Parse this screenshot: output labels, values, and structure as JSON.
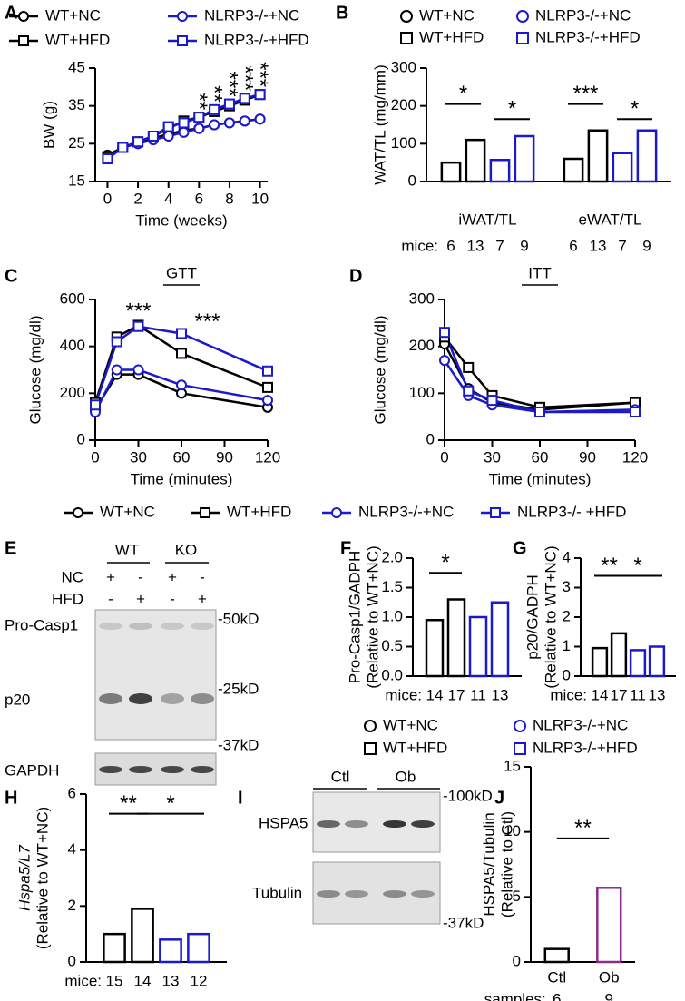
{
  "chart_data": [
    {
      "type": "line",
      "panel": "A",
      "ylabel": "BW (g)",
      "xlabel": "Time (weeks)",
      "x": [
        0,
        1,
        2,
        3,
        4,
        5,
        6,
        7,
        8,
        9,
        10
      ],
      "xlim": [
        -0.8,
        10.5
      ],
      "xticks": [
        0,
        2,
        4,
        6,
        8,
        10
      ],
      "ylim": [
        15,
        45
      ],
      "yticks": [
        15,
        25,
        35,
        45
      ],
      "legend": "top",
      "series": [
        {
          "name": "WT+NC",
          "color": "#000000",
          "marker": "circle",
          "values": [
            22,
            24,
            25.5,
            26.5,
            27.5,
            28.5,
            29,
            30,
            30.5,
            31,
            31.5
          ]
        },
        {
          "name": "WT+HFD",
          "color": "#000000",
          "marker": "square",
          "values": [
            21.5,
            24,
            25.5,
            27,
            29,
            31,
            32,
            33.5,
            35,
            36.5,
            38
          ]
        },
        {
          "name": "NLRP3-/-+NC",
          "color": "#1a1acc",
          "marker": "circle",
          "values": [
            21,
            24,
            25,
            26,
            27,
            28,
            29,
            30,
            30.5,
            31,
            31.5
          ]
        },
        {
          "name": "NLRP3-/-+HFD",
          "color": "#1a1acc",
          "marker": "square",
          "values": [
            21,
            24,
            25.5,
            27,
            29.5,
            30.5,
            32,
            34,
            35.5,
            37,
            38
          ]
        }
      ],
      "annotations": [
        "**",
        "**",
        "***",
        "***",
        "***"
      ]
    },
    {
      "type": "bar",
      "panel": "B",
      "ylabel": "WAT/TL (mg/mm)",
      "categories": [
        "iWAT/TL",
        "eWAT/TL"
      ],
      "ylim": [
        0,
        300
      ],
      "yticks": [
        0,
        100,
        200,
        300
      ],
      "legend": "top",
      "series": [
        {
          "name": "WT+NC",
          "color": "#000000",
          "marker": "circle",
          "values": [
            50,
            60
          ]
        },
        {
          "name": "WT+HFD",
          "color": "#000000",
          "marker": "square",
          "values": [
            110,
            135
          ]
        },
        {
          "name": "NLRP3-/-+NC",
          "color": "#1a1acc",
          "marker": "circle",
          "values": [
            57,
            75
          ]
        },
        {
          "name": "NLRP3-/-+HFD",
          "color": "#1a1acc",
          "marker": "square",
          "values": [
            120,
            135
          ]
        }
      ],
      "count_label": "mice:",
      "counts": [
        [
          6,
          13,
          7,
          9
        ],
        [
          6,
          13,
          7,
          9
        ]
      ],
      "annotations": [
        "*",
        "*",
        "***",
        "*"
      ]
    },
    {
      "type": "line",
      "panel": "C",
      "subtitle": "GTT",
      "ylabel": "Glucose (mg/dl)",
      "xlabel": "Time (minutes)",
      "x": [
        0,
        15,
        30,
        60,
        120
      ],
      "xlim": [
        0,
        120
      ],
      "xticks": [
        0,
        30,
        60,
        90,
        120
      ],
      "ylim": [
        0,
        600
      ],
      "yticks": [
        0,
        200,
        400,
        600
      ],
      "legend": "below",
      "series": [
        {
          "name": "WT+NC",
          "color": "#000000",
          "marker": "circle",
          "values": [
            130,
            280,
            280,
            200,
            140
          ]
        },
        {
          "name": "WT+HFD",
          "color": "#000000",
          "marker": "square",
          "values": [
            160,
            440,
            490,
            370,
            225
          ]
        },
        {
          "name": "NLRP3-/-+NC",
          "color": "#1a1acc",
          "marker": "circle",
          "values": [
            120,
            300,
            300,
            235,
            170
          ]
        },
        {
          "name": "NLRP3-/- +HFD",
          "color": "#1a1acc",
          "marker": "square",
          "values": [
            150,
            420,
            485,
            455,
            295
          ]
        }
      ],
      "annotations": [
        "***",
        "***"
      ]
    },
    {
      "type": "line",
      "panel": "D",
      "subtitle": "ITT",
      "ylabel": "Glucose (mg/dl)",
      "xlabel": "Time (minutes)",
      "x": [
        0,
        15,
        30,
        60,
        120
      ],
      "xlim": [
        0,
        120
      ],
      "xticks": [
        0,
        30,
        60,
        90,
        120
      ],
      "ylim": [
        0,
        300
      ],
      "yticks": [
        0,
        100,
        200,
        300
      ],
      "legend": "none",
      "series": [
        {
          "name": "WT+NC",
          "color": "#000000",
          "marker": "circle",
          "values": [
            205,
            110,
            80,
            65,
            80
          ]
        },
        {
          "name": "WT+HFD",
          "color": "#000000",
          "marker": "square",
          "values": [
            220,
            155,
            95,
            70,
            80
          ]
        },
        {
          "name": "NLRP3-/-+NC",
          "color": "#1a1acc",
          "marker": "circle",
          "values": [
            170,
            95,
            75,
            60,
            65
          ]
        },
        {
          "name": "NLRP3-/-+HFD",
          "color": "#1a1acc",
          "marker": "square",
          "values": [
            230,
            105,
            85,
            60,
            60
          ]
        }
      ]
    },
    {
      "type": "bar",
      "panel": "F",
      "ylabel": [
        "Pro-Casp1/GADPH",
        "(Relative to WT+NC)"
      ],
      "categories": [
        null
      ],
      "ylim": [
        0,
        2
      ],
      "yticks": [
        {
          "value": 0,
          "label": "0.0"
        },
        {
          "value": 0.5,
          "label": "0.5"
        },
        {
          "value": 1,
          "label": "1.0"
        },
        {
          "value": 1.5,
          "label": "1.5"
        },
        {
          "value": 2,
          "label": "2.0"
        }
      ],
      "legend": "below",
      "series": [
        {
          "name": "WT+NC",
          "color": "#000000",
          "marker": "circle",
          "values": [
            0.95
          ]
        },
        {
          "name": "WT+HFD",
          "color": "#000000",
          "marker": "square",
          "values": [
            1.3
          ]
        },
        {
          "name": "NLRP3-/-+NC",
          "color": "#1a1acc",
          "marker": "circle",
          "values": [
            1.0
          ]
        },
        {
          "name": "NLRP3-/-+HFD",
          "color": "#1a1acc",
          "marker": "square",
          "values": [
            1.25
          ]
        }
      ],
      "count_label": "mice:",
      "counts": [
        [
          14,
          17,
          11,
          13
        ]
      ],
      "annotations": [
        "*"
      ]
    },
    {
      "type": "bar",
      "panel": "G",
      "ylabel": [
        "p20/GADPH",
        "(Relative to WT+NC)"
      ],
      "categories": [
        null
      ],
      "ylim": [
        0,
        4
      ],
      "yticks": [
        0,
        1,
        2,
        3,
        4
      ],
      "legend": "none",
      "series": [
        {
          "name": "WT+NC",
          "color": "#000000",
          "marker": "circle",
          "values": [
            0.95
          ]
        },
        {
          "name": "WT+HFD",
          "color": "#000000",
          "marker": "square",
          "values": [
            1.45
          ]
        },
        {
          "name": "NLRP3-/-+NC",
          "color": "#1a1acc",
          "marker": "circle",
          "values": [
            0.88
          ]
        },
        {
          "name": "NLRP3-/-+HFD",
          "color": "#1a1acc",
          "marker": "square",
          "values": [
            1.0
          ]
        }
      ],
      "count_label": "mice:",
      "counts": [
        [
          14,
          17,
          11,
          13
        ]
      ],
      "annotations": [
        "**",
        "*"
      ]
    },
    {
      "type": "bar",
      "panel": "H",
      "ylabel": [
        "Hspa5/L7",
        "(Relative to WT+NC)"
      ],
      "categories": [
        null
      ],
      "ylim": [
        0,
        6
      ],
      "yticks": [
        0,
        2,
        4,
        6
      ],
      "legend": "none",
      "series": [
        {
          "name": "WT+NC",
          "color": "#000000",
          "marker": "circle",
          "values": [
            1.0
          ]
        },
        {
          "name": "WT+HFD",
          "color": "#000000",
          "marker": "square",
          "values": [
            1.9
          ]
        },
        {
          "name": "NLRP3-/-+NC",
          "color": "#1a1acc",
          "marker": "circle",
          "values": [
            0.8
          ]
        },
        {
          "name": "NLRP3-/-+HFD",
          "color": "#1a1acc",
          "marker": "square",
          "values": [
            1.0
          ]
        }
      ],
      "count_label": "mice:",
      "counts": [
        [
          15,
          14,
          13,
          12
        ]
      ],
      "annotations": [
        "**",
        "*"
      ]
    },
    {
      "type": "bar",
      "panel": "J",
      "ylabel": [
        "HSPA5/Tubulin",
        "(Relative to Ctl)"
      ],
      "categories": [
        "Ctl",
        "Ob"
      ],
      "values": [
        1.0,
        5.7
      ],
      "colors": [
        "#000000",
        "#8b2a8b"
      ],
      "ylim": [
        0,
        15
      ],
      "yticks": [
        0,
        5,
        10,
        15
      ],
      "legend": "none",
      "count_label": "samples:",
      "counts": [
        6,
        9
      ],
      "annotations": [
        "**"
      ]
    }
  ],
  "blots": [
    {
      "panel": "E",
      "groups": [
        "WT",
        "KO"
      ],
      "conditions": [
        {
          "label": "NC",
          "marks": [
            "+",
            "-",
            "+",
            "-"
          ]
        },
        {
          "label": "HFD",
          "marks": [
            "-",
            "+",
            "-",
            "+"
          ]
        }
      ],
      "band_labels": [
        "Pro-Casp1",
        "p20",
        "GAPDH"
      ],
      "size_markers": [
        "-50kD",
        "-25kD",
        "-37kD"
      ]
    },
    {
      "panel": "I",
      "groups": [
        "Ctl",
        "Ob"
      ],
      "band_labels": [
        "HSPA5",
        "Tubulin"
      ],
      "size_markers": [
        "-100kD",
        "-37kD"
      ]
    }
  ]
}
